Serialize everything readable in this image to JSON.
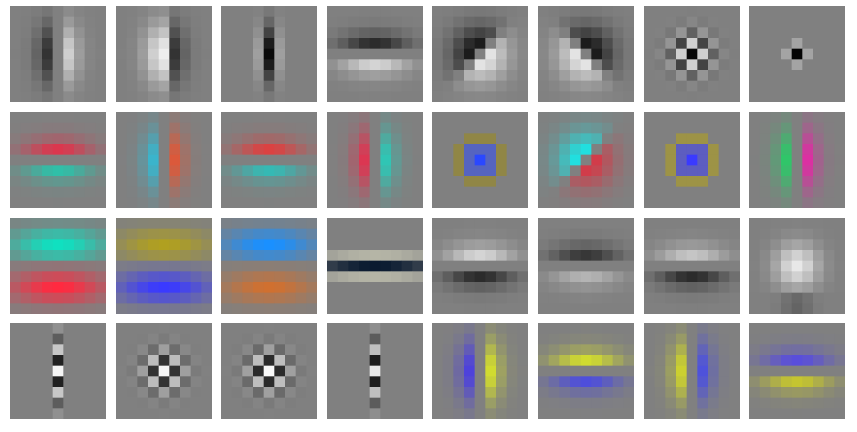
{
  "background": "#808080",
  "filters": [
    {
      "id": "f0",
      "pattern": "vertical_edge",
      "c1": "#141414",
      "c2": "#eeeeee"
    },
    {
      "id": "f1",
      "pattern": "vertical_edge_reverse",
      "c1": "#eeeeee",
      "c2": "#141414"
    },
    {
      "id": "f2",
      "pattern": "vertical_line",
      "c1": "#0a0a0a",
      "c2": "#bdbdbd"
    },
    {
      "id": "f3",
      "pattern": "horizontal_edge",
      "c1": "#0a0a0a",
      "c2": "#f5f5f5"
    },
    {
      "id": "f4",
      "pattern": "diagonal",
      "c1": "#0a0a0a",
      "c2": "#f5f5f5"
    },
    {
      "id": "f5",
      "pattern": "diagonal_reverse",
      "c1": "#f5f5f5",
      "c2": "#0a0a0a"
    },
    {
      "id": "f6",
      "pattern": "checker",
      "c1": "#0a0a0a",
      "c2": "#f0f0f0"
    },
    {
      "id": "f7",
      "pattern": "point",
      "c1": "#050505",
      "c2": "#c8c8c8"
    },
    {
      "id": "f8",
      "pattern": "horizontal_edge",
      "c1": "#ff1a3a",
      "c2": "#10d8b8"
    },
    {
      "id": "f9",
      "pattern": "vertical_edge",
      "c1": "#20c8e8",
      "c2": "#ff4a20"
    },
    {
      "id": "f10",
      "pattern": "horizontal_edge",
      "c1": "#ff2a2a",
      "c2": "#18d0c8"
    },
    {
      "id": "f11",
      "pattern": "vertical_edge",
      "c1": "#ff1a40",
      "c2": "#10e0c8"
    },
    {
      "id": "f12",
      "pattern": "center_surround",
      "c1": "#2a48ff",
      "c2": "#9a8a20"
    },
    {
      "id": "f13",
      "pattern": "diagonal",
      "c1": "#10f0f0",
      "c2": "#e03040"
    },
    {
      "id": "f14",
      "pattern": "center_surround",
      "c1": "#3a3aff",
      "c2": "#b0a020"
    },
    {
      "id": "f15",
      "pattern": "vertical_edge",
      "c1": "#10e060",
      "c2": "#ff10b0"
    },
    {
      "id": "f16",
      "pattern": "horizontal_band_pair",
      "c1": "#10e0c0",
      "c2": "#ff2a40"
    },
    {
      "id": "f17",
      "pattern": "horizontal_band_pair",
      "c1": "#b0a020",
      "c2": "#3a3aff"
    },
    {
      "id": "f18",
      "pattern": "horizontal_band_pair",
      "c1": "#1a90ff",
      "c2": "#d07030"
    },
    {
      "id": "f19",
      "pattern": "horizontal_line",
      "c1": "#0a1a30",
      "c2": "#d8d8c0"
    },
    {
      "id": "f20",
      "pattern": "horizontal_edge",
      "c1": "#f5f5f5",
      "c2": "#0a0a0a"
    },
    {
      "id": "f21",
      "pattern": "horizontal_edge",
      "c1": "#1a1a1a",
      "c2": "#c8c8c8"
    },
    {
      "id": "f22",
      "pattern": "horizontal_edge",
      "c1": "#e0e0e0",
      "c2": "#0a0a0a"
    },
    {
      "id": "f23",
      "pattern": "blob",
      "c1": "#e8e8e8",
      "c2": "#505050"
    },
    {
      "id": "f24",
      "pattern": "vertical_line_stack",
      "c1": "#f5f5f5",
      "c2": "#141414"
    },
    {
      "id": "f25",
      "pattern": "checker",
      "c1": "#f5f5f5",
      "c2": "#141414"
    },
    {
      "id": "f26",
      "pattern": "checker",
      "c1": "#f8f8f8",
      "c2": "#0a0a0a"
    },
    {
      "id": "f27",
      "pattern": "vertical_line_stack",
      "c1": "#e8e8e8",
      "c2": "#101010"
    },
    {
      "id": "f28",
      "pattern": "vertical_edge",
      "c1": "#3a2aff",
      "c2": "#f0ff10"
    },
    {
      "id": "f29",
      "pattern": "horizontal_edge",
      "c1": "#f0ff10",
      "c2": "#3a3aff"
    },
    {
      "id": "f30",
      "pattern": "vertical_edge",
      "c1": "#e8f010",
      "c2": "#3a40ff"
    },
    {
      "id": "f31",
      "pattern": "horizontal_edge",
      "c1": "#4a3aff",
      "c2": "#e0e010"
    }
  ]
}
